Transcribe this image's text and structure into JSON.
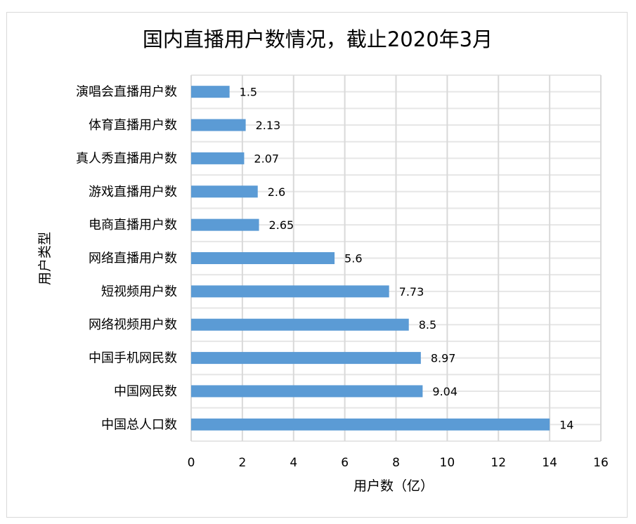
{
  "chart_data": {
    "type": "bar",
    "orientation": "horizontal",
    "title": "国内直播用户数情况，截止2020年3月",
    "xlabel": "用户数（亿）",
    "ylabel": "用户类型",
    "xlim": [
      0,
      16
    ],
    "xticks": [
      0,
      2,
      4,
      6,
      8,
      10,
      12,
      14,
      16
    ],
    "grid": true,
    "categories": [
      "演唱会直播用户数",
      "体育直播用户数",
      "真人秀直播用户数",
      "游戏直播用户数",
      "电商直播用户数",
      "网络直播用户数",
      "短视频用户数",
      "网络视频用户数",
      "中国手机网民数",
      "中国网民数",
      "中国总人口数"
    ],
    "values": [
      1.5,
      2.13,
      2.07,
      2.6,
      2.65,
      5.6,
      7.73,
      8.5,
      8.97,
      9.04,
      14
    ],
    "value_labels": [
      "1.5",
      "2.13",
      "2.07",
      "2.6",
      "2.65",
      "5.6",
      "7.73",
      "8.5",
      "8.97",
      "9.04",
      "14"
    ],
    "bar_color": "#5b9bd5"
  }
}
